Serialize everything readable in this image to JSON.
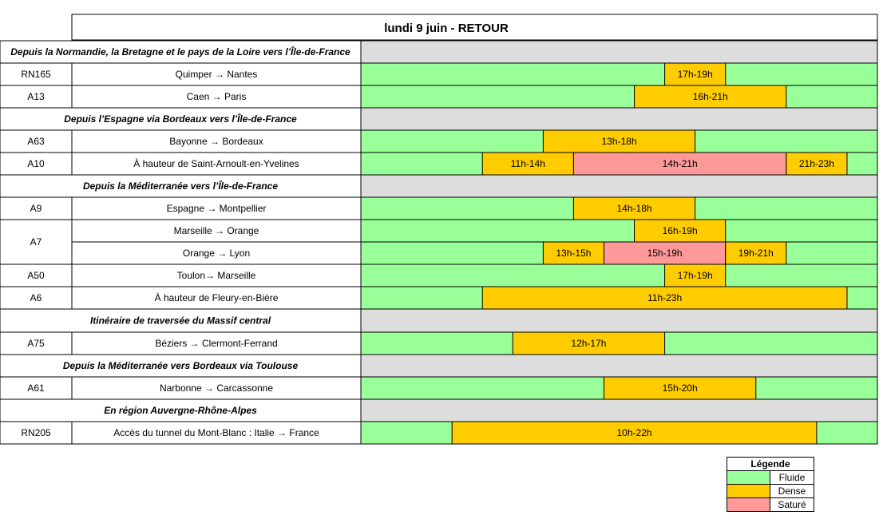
{
  "chart_data": {
    "type": "table",
    "title": "lundi 9 juin  - RETOUR",
    "hours": [
      7,
      24
    ],
    "colors": {
      "Fluide": "#99ff99",
      "Dense": "#ffcc00",
      "Saturé": "#ff9999",
      "section_bg": "#dddddd"
    },
    "rows": [
      {
        "kind": "section",
        "label": "Depuis la Normandie, la Bretagne et le pays de la Loire vers l’Île-de-France"
      },
      {
        "kind": "route",
        "road": "RN165",
        "route": "Quimper → Nantes",
        "segments": [
          {
            "label": "17h-19h",
            "start": 17,
            "end": 19,
            "level": "Dense"
          }
        ]
      },
      {
        "kind": "route",
        "road": "A13",
        "route": "Caen → Paris",
        "segments": [
          {
            "label": "16h-21h",
            "start": 16,
            "end": 21,
            "level": "Dense"
          }
        ]
      },
      {
        "kind": "section",
        "label": "Depuis l’Espagne via Bordeaux vers l’Île-de-France"
      },
      {
        "kind": "route",
        "road": "A63",
        "route": "Bayonne → Bordeaux",
        "segments": [
          {
            "label": "13h-18h",
            "start": 13,
            "end": 18,
            "level": "Dense"
          }
        ]
      },
      {
        "kind": "route",
        "road": "A10",
        "route": "À hauteur de Saint-Arnoult-en-Yvelines",
        "segments": [
          {
            "label": "11h-14h",
            "start": 11,
            "end": 14,
            "level": "Dense"
          },
          {
            "label": "14h-21h",
            "start": 14,
            "end": 21,
            "level": "Saturé"
          },
          {
            "label": "21h-23h",
            "start": 21,
            "end": 23,
            "level": "Dense"
          }
        ]
      },
      {
        "kind": "section",
        "label": "Depuis la Méditerranée vers l’Île-de-France"
      },
      {
        "kind": "route",
        "road": "A9",
        "route": "Espagne → Montpellier",
        "segments": [
          {
            "label": "14h-18h",
            "start": 14,
            "end": 18,
            "level": "Dense"
          }
        ]
      },
      {
        "kind": "route",
        "road": "A7",
        "route": "Marseille → Orange",
        "segments": [
          {
            "label": "16h-19h",
            "start": 16,
            "end": 19,
            "level": "Dense"
          }
        ]
      },
      {
        "kind": "route",
        "road": "",
        "route": "Orange → Lyon",
        "segments": [
          {
            "label": "13h-15h",
            "start": 13,
            "end": 15,
            "level": "Dense"
          },
          {
            "label": "15h-19h",
            "start": 15,
            "end": 19,
            "level": "Saturé"
          },
          {
            "label": "19h-21h",
            "start": 19,
            "end": 21,
            "level": "Dense"
          }
        ]
      },
      {
        "kind": "route",
        "road": "A50",
        "route": "Toulon→ Marseille",
        "segments": [
          {
            "label": "17h-19h",
            "start": 17,
            "end": 19,
            "level": "Dense"
          }
        ]
      },
      {
        "kind": "route",
        "road": "A6",
        "route": "À hauteur de Fleury-en-Bière",
        "segments": [
          {
            "label": "11h-23h",
            "start": 11,
            "end": 23,
            "level": "Dense"
          }
        ]
      },
      {
        "kind": "section",
        "label": "Itinéraire de traversée du Massif central"
      },
      {
        "kind": "route",
        "road": "A75",
        "route": "Béziers → Clermont-Ferrand",
        "segments": [
          {
            "label": "12h-17h",
            "start": 12,
            "end": 17,
            "level": "Dense"
          }
        ]
      },
      {
        "kind": "section",
        "label": "Depuis la Méditerranée vers Bordeaux via Toulouse"
      },
      {
        "kind": "route",
        "road": "A61",
        "route": "Narbonne → Carcassonne",
        "segments": [
          {
            "label": "15h-20h",
            "start": 15,
            "end": 20,
            "level": "Dense"
          }
        ]
      },
      {
        "kind": "section",
        "label": "En région Auvergne-Rhône-Alpes"
      },
      {
        "kind": "route",
        "road": "RN205",
        "route": "Accès du tunnel du Mont-Blanc : Italie → France",
        "segments": [
          {
            "label": "10h-22h",
            "start": 10,
            "end": 22,
            "level": "Dense"
          }
        ]
      }
    ],
    "legend": {
      "title": "Légende",
      "items": [
        {
          "label": "Fluide",
          "color": "#99ff99"
        },
        {
          "label": "Dense",
          "color": "#ffcc00"
        },
        {
          "label": "Saturé",
          "color": "#ff9999"
        }
      ]
    }
  }
}
